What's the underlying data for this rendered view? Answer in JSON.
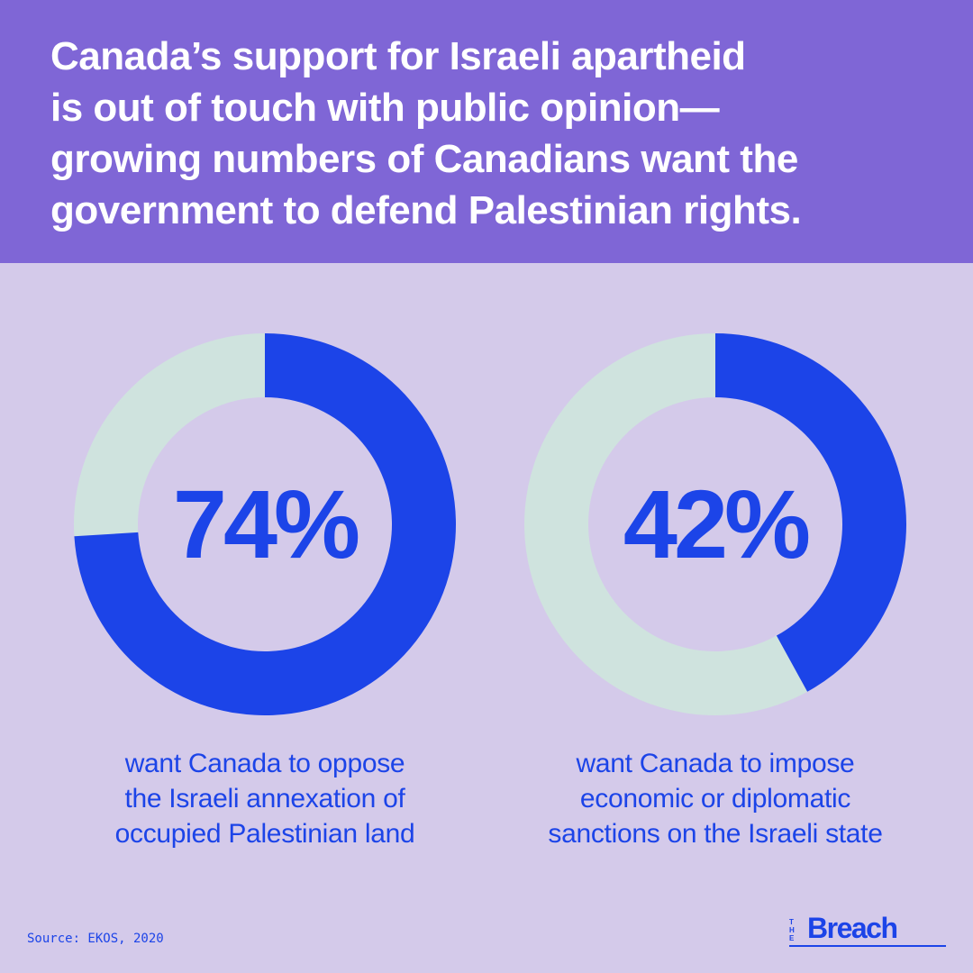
{
  "headline": {
    "lines": [
      "Canada’s support for Israeli apartheid",
      "is out of touch with public opinion—",
      "growing numbers of Canadians want the",
      "government to defend Palestinian rights."
    ]
  },
  "chart_data": [
    {
      "type": "pie",
      "value": 74,
      "label": "74%",
      "caption": [
        "want Canada to oppose",
        "the Israeli annexation of",
        "occupied Palestinian land"
      ],
      "colors": {
        "filled": "#1c44e8",
        "remainder": "#cfe3de"
      }
    },
    {
      "type": "pie",
      "value": 42,
      "label": "42%",
      "caption": [
        "want Canada to impose",
        "economic or diplomatic",
        "sanctions on the Israeli state"
      ],
      "colors": {
        "filled": "#1c44e8",
        "remainder": "#cfe3de"
      }
    }
  ],
  "footer": {
    "source": "Source: EKOS, 2020",
    "logo_small": [
      "T",
      "H",
      "E"
    ],
    "logo_word": "Breach"
  }
}
